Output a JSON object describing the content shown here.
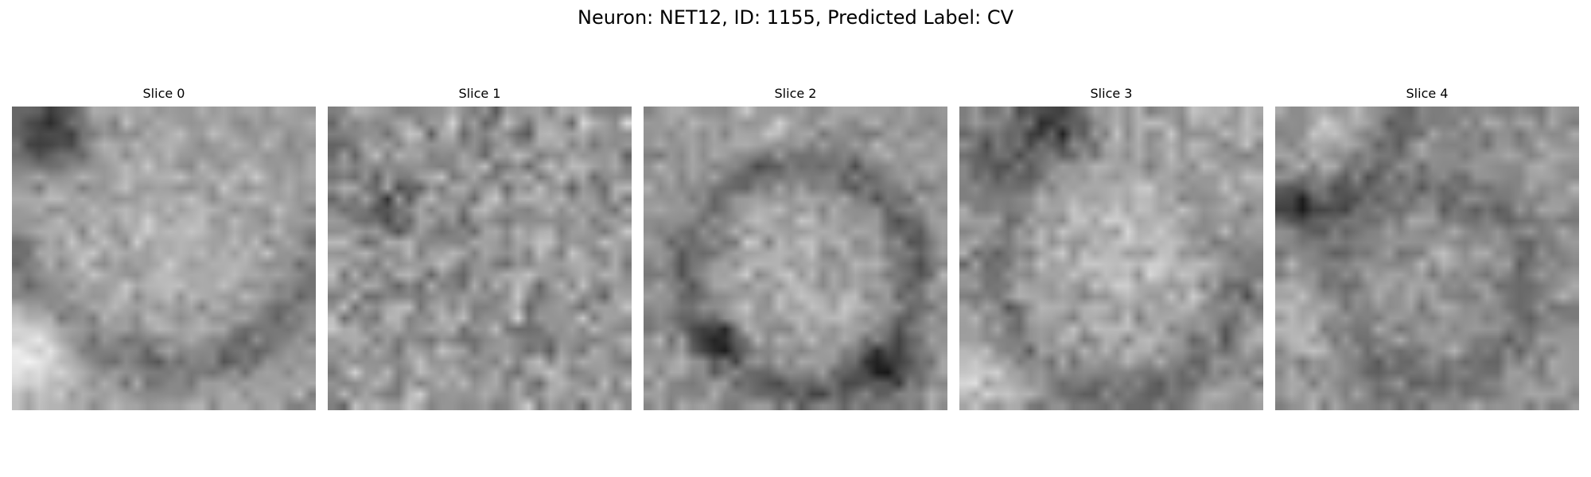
{
  "figure": {
    "title": "Neuron: NET12, ID: 1155, Predicted Label: CV"
  },
  "panels": [
    {
      "title": "Slice 0"
    },
    {
      "title": "Slice 1"
    },
    {
      "title": "Slice 2"
    },
    {
      "title": "Slice 3"
    },
    {
      "title": "Slice 4"
    }
  ],
  "colormap": "gray"
}
